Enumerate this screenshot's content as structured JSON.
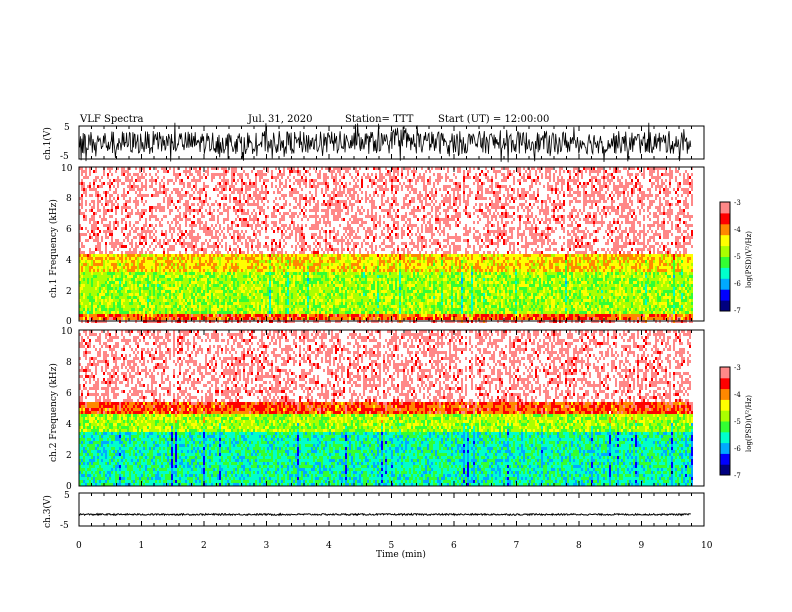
{
  "header": {
    "title": "VLF Spectra",
    "date": "Jul. 31, 2020",
    "station": "Station= TTT",
    "start_time": "Start (UT) = 12:00:00"
  },
  "chart_data": [
    {
      "type": "line",
      "panel": "ch1-waveform",
      "ylabel": "ch.1(V)",
      "ylim": [
        -5,
        5
      ],
      "yticks": [
        "5",
        "-5"
      ],
      "description_values": {
        "approx_min": -5,
        "approx_max": 5
      },
      "color": "#000000"
    },
    {
      "type": "heatmap",
      "panel": "ch1-spectrogram",
      "ylabel": "ch.1 Frequency (kHz)",
      "ylim": [
        0,
        10
      ],
      "yticks": [
        "0",
        "2",
        "4",
        "6",
        "8",
        "10"
      ],
      "bands": [
        {
          "from_khz": 0,
          "to_khz": 0.4,
          "level": -4
        },
        {
          "from_khz": 0.4,
          "to_khz": 3.2,
          "level": -5
        },
        {
          "from_khz": 3.2,
          "to_khz": 4.3,
          "level": -4.5
        },
        {
          "from_khz": 4.3,
          "to_khz": 10,
          "level": -3.2
        }
      ],
      "colorbar": {
        "label": "log(PSD)(V²/Hz)",
        "ticks": [
          "-3",
          "-4",
          "-5",
          "-6",
          "-7"
        ],
        "range": [
          -7,
          -3
        ]
      }
    },
    {
      "type": "heatmap",
      "panel": "ch2-spectrogram",
      "ylabel": "ch.2 Frequency (kHz)",
      "ylim": [
        0,
        10
      ],
      "yticks": [
        "0",
        "2",
        "4",
        "6",
        "8",
        "10"
      ],
      "bands": [
        {
          "from_khz": 0,
          "to_khz": 3.4,
          "level": -5.7
        },
        {
          "from_khz": 3.4,
          "to_khz": 4.6,
          "level": -5
        },
        {
          "from_khz": 4.6,
          "to_khz": 5.4,
          "level": -4
        },
        {
          "from_khz": 5.4,
          "to_khz": 10,
          "level": -3.2
        }
      ],
      "colorbar": {
        "label": "log(PSD)(V²/Hz)",
        "ticks": [
          "-3",
          "-4",
          "-5",
          "-6",
          "-7"
        ],
        "range": [
          -7,
          -3
        ]
      }
    },
    {
      "type": "line",
      "panel": "ch3-waveform",
      "ylabel": "ch.3(V)",
      "ylim": [
        -5,
        5
      ],
      "yticks": [
        "5",
        "-5"
      ],
      "description_values": {
        "approx_level": -1.5
      },
      "color": "#000000"
    }
  ],
  "xaxis": {
    "label": "Time (min)",
    "xlim": [
      0,
      10
    ],
    "ticks": [
      "0",
      "1",
      "2",
      "3",
      "4",
      "5",
      "6",
      "7",
      "8",
      "9",
      "10"
    ],
    "data_end_min": 9.8
  },
  "colormap": [
    "#000080",
    "#0000ff",
    "#00aaff",
    "#00ffcc",
    "#33ff33",
    "#aaff00",
    "#ffff00",
    "#ff8800",
    "#ff0000",
    "#ff8888",
    "#ffffff"
  ]
}
